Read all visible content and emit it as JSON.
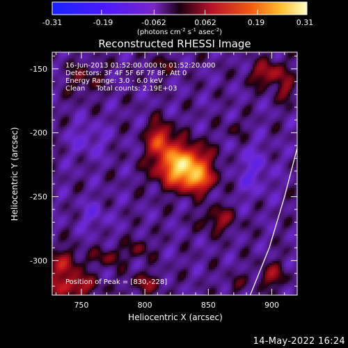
{
  "title": "Reconstructed RHESSI Image",
  "colorbar": {
    "ticks": [
      "-0.31",
      "-0.19",
      "-0.062",
      "0.062",
      "0.19",
      "0.31"
    ],
    "range": [
      -0.31,
      0.31
    ],
    "unit_main": "(photons cm",
    "unit_exp1": "-2",
    "unit_mid": " s",
    "unit_exp2": "-1",
    "unit_after": " asec",
    "unit_exp3": "-2",
    "unit_close": ")"
  },
  "annotations": {
    "time_range": "16-Jun-2013 01:52:00.000 to 01:52:20.000",
    "detectors": "Detectors: 3F 4F 5F 6F 7F 8F, Att 0",
    "energy_range": "Energy Range: 3.0 - 6.0 keV",
    "method_counts": "Clean     Total counts: 2.19E+03",
    "peak_position": "Position of Peak = [830,-228]"
  },
  "footer_date": "14-May-2022 16:24",
  "chart_data": {
    "type": "heatmap",
    "title": "Reconstructed RHESSI Image",
    "xlabel": "Heliocentric X (arcsec)",
    "ylabel": "Heliocentric Y (arcsec)",
    "xlim": [
      727,
      920
    ],
    "ylim": [
      -327,
      -137
    ],
    "x_ticks": [
      750,
      800,
      850,
      900
    ],
    "y_ticks": [
      -150,
      -200,
      -250,
      -300
    ],
    "x_tick_labels": [
      "750",
      "800",
      "850",
      "900"
    ],
    "y_tick_labels": [
      "-150",
      "-200",
      "-250",
      "-300"
    ],
    "colorbar_range": [
      -0.31,
      0.31
    ],
    "peak": {
      "x": 830,
      "y": -228,
      "value": 0.31
    },
    "limb_curve": [
      [
        883,
        -327
      ],
      [
        898,
        -290
      ],
      [
        910,
        -250
      ],
      [
        920,
        -212
      ]
    ],
    "sources": [
      {
        "x": 830,
        "y": -226,
        "sx": 14,
        "sy": 11,
        "amp": 0.31
      },
      {
        "x": 812,
        "y": -205,
        "sx": 7,
        "sy": 9,
        "amp": 0.17
      },
      {
        "x": 842,
        "y": -238,
        "sx": 9,
        "sy": 6,
        "amp": 0.13
      },
      {
        "x": 898,
        "y": -154,
        "sx": 10,
        "sy": 7,
        "amp": 0.12
      },
      {
        "x": 912,
        "y": -168,
        "sx": 5,
        "sy": 6,
        "amp": 0.08
      },
      {
        "x": 736,
        "y": -303,
        "sx": 10,
        "sy": 8,
        "amp": 0.11
      },
      {
        "x": 742,
        "y": -320,
        "sx": 14,
        "sy": 6,
        "amp": 0.13
      },
      {
        "x": 772,
        "y": -297,
        "sx": 8,
        "sy": 5,
        "amp": 0.08
      },
      {
        "x": 796,
        "y": -290,
        "sx": 6,
        "sy": 6,
        "amp": 0.07
      },
      {
        "x": 800,
        "y": -318,
        "sx": 9,
        "sy": 6,
        "amp": 0.08
      },
      {
        "x": 858,
        "y": -268,
        "sx": 10,
        "sy": 7,
        "amp": 0.09
      },
      {
        "x": 900,
        "y": -312,
        "sx": 8,
        "sy": 7,
        "amp": 0.09
      },
      {
        "x": 872,
        "y": -197,
        "sx": 5,
        "sy": 5,
        "amp": 0.05
      },
      {
        "x": 870,
        "y": -318,
        "sx": 5,
        "sy": 5,
        "amp": 0.05
      },
      {
        "x": 752,
        "y": -158,
        "sx": 10,
        "sy": 9,
        "amp": 0.06
      },
      {
        "x": 812,
        "y": -147,
        "sx": 8,
        "sy": 5,
        "amp": 0.05
      },
      {
        "x": 760,
        "y": -265,
        "sx": 8,
        "sy": 8,
        "amp": -0.05
      },
      {
        "x": 885,
        "y": -230,
        "sx": 10,
        "sy": 14,
        "amp": -0.06
      },
      {
        "x": 755,
        "y": -205,
        "sx": 10,
        "sy": 10,
        "amp": -0.05
      }
    ]
  }
}
